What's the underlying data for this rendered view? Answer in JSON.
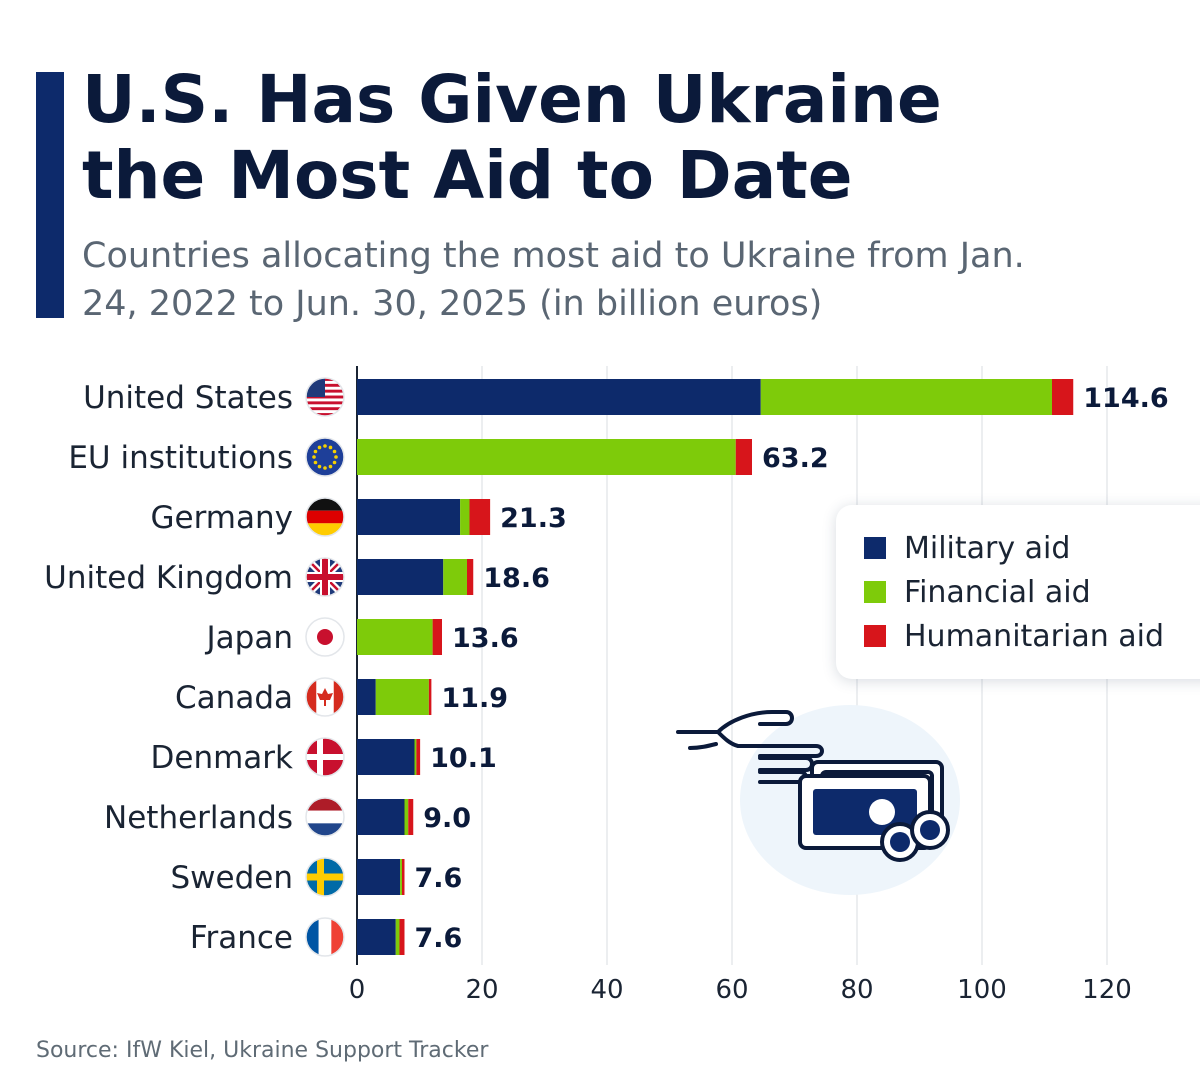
{
  "title": "U.S. Has Given Ukraine the Most Aid to Date",
  "subtitle": "Countries allocating the most aid to Ukraine from Jan. 24, 2022 to Jun. 30, 2025 (in billion euros)",
  "source": "Source: IfW Kiel, Ukraine Support Tracker",
  "colors": {
    "military": "#0d2a6b",
    "financial": "#7ecb0a",
    "humanitarian": "#d7151b",
    "accent": "#0d2a6b"
  },
  "legend": [
    {
      "label": "Military aid",
      "color": "#0d2a6b"
    },
    {
      "label": "Financial aid",
      "color": "#7ecb0a"
    },
    {
      "label": "Humanitarian aid",
      "color": "#d7151b"
    }
  ],
  "chart_data": {
    "type": "bar",
    "orientation": "horizontal",
    "stacked": true,
    "title": "U.S. Has Given Ukraine the Most Aid to Date",
    "xlabel": "",
    "ylabel": "",
    "xlim": [
      0,
      120
    ],
    "xticks": [
      0,
      20,
      40,
      60,
      80,
      100,
      120
    ],
    "categories": [
      "United States",
      "EU institutions",
      "Germany",
      "United Kingdom",
      "Japan",
      "Canada",
      "Denmark",
      "Netherlands",
      "Sweden",
      "France"
    ],
    "flags": [
      "us-flag-icon",
      "eu-flag-icon",
      "germany-flag-icon",
      "uk-flag-icon",
      "japan-flag-icon",
      "canada-flag-icon",
      "denmark-flag-icon",
      "netherlands-flag-icon",
      "sweden-flag-icon",
      "france-flag-icon"
    ],
    "totals": [
      "114.6",
      "63.2",
      "21.3",
      "18.6",
      "13.6",
      "11.9",
      "10.1",
      "9.0",
      "7.6",
      "7.6"
    ],
    "series": [
      {
        "name": "Military aid",
        "values": [
          64.6,
          0,
          16.5,
          13.8,
          0,
          3.0,
          9.2,
          7.6,
          6.9,
          6.2
        ]
      },
      {
        "name": "Financial aid",
        "values": [
          46.6,
          60.6,
          1.5,
          3.8,
          12.1,
          8.5,
          0.3,
          0.6,
          0.3,
          0.6
        ]
      },
      {
        "name": "Humanitarian aid",
        "values": [
          3.4,
          2.6,
          3.3,
          1.0,
          1.5,
          0.4,
          0.6,
          0.8,
          0.4,
          0.8
        ]
      }
    ],
    "legend_position": "right",
    "grid": "vertical"
  }
}
